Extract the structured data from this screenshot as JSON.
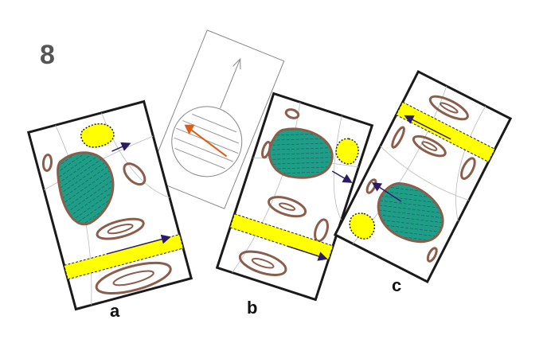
{
  "figure": {
    "number": "8",
    "panels": [
      {
        "id": "a",
        "label": "a"
      },
      {
        "id": "b",
        "label": "b"
      },
      {
        "id": "c",
        "label": "c"
      }
    ],
    "colors": {
      "card_border": "#1a1a1a",
      "outline_brown": "#8b5e4c",
      "teal_fill": "#1f9e86",
      "yellow_fill": "#ffff00",
      "arrow_dark": "#2b1a66",
      "arrow_orange": "#e05a12",
      "thin_line": "#999999"
    }
  }
}
